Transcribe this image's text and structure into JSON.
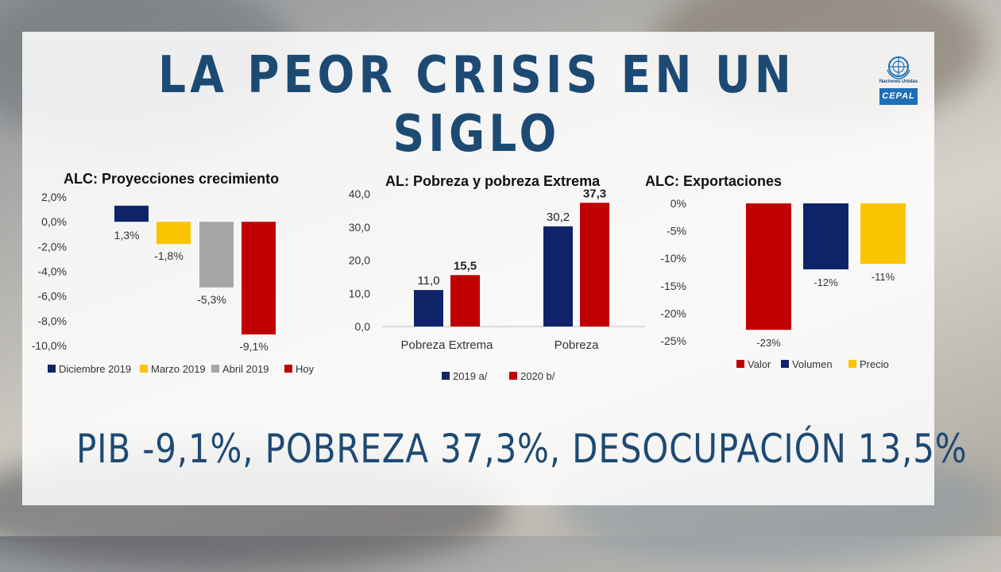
{
  "title": "LA PEOR CRISIS EN UN SIGLO",
  "logo": {
    "org": "Naciones Unidas",
    "name": "CEPAL"
  },
  "bottom_text": "PIB -9,1%, POBREZA 37,3%, DESOCUPACIÓN 13,5%",
  "colors": {
    "navy": "#0f2468",
    "yellow": "#fbc400",
    "gray": "#a6a6a6",
    "red": "#c00000",
    "title": "#1d4a73"
  },
  "chart_data": [
    {
      "type": "bar",
      "title": "ALC: Proyecciones crecimiento",
      "ylim": [
        -10,
        2
      ],
      "y_ticks": [
        "2,0%",
        "0,0%",
        "-2,0%",
        "-4,0%",
        "-6,0%",
        "-8,0%",
        "-10,0%"
      ],
      "series": [
        {
          "name": "Diciembre 2019",
          "value": 1.3,
          "label": "1,3%",
          "color": "#0f2468"
        },
        {
          "name": "Marzo 2019",
          "value": -1.8,
          "label": "-1,8%",
          "color": "#fbc400"
        },
        {
          "name": "Abril 2019",
          "value": -5.3,
          "label": "-5,3%",
          "color": "#a6a6a6"
        },
        {
          "name": "Hoy",
          "value": -9.1,
          "label": "-9,1%",
          "color": "#c00000"
        }
      ],
      "legend": "bottom"
    },
    {
      "type": "bar",
      "title": "AL: Pobreza y pobreza Extrema",
      "ylim": [
        0,
        40
      ],
      "y_ticks": [
        "40,0",
        "30,0",
        "20,0",
        "10,0",
        "0,0"
      ],
      "categories": [
        "Pobreza Extrema",
        "Pobreza"
      ],
      "series": [
        {
          "name": "2019 a/",
          "values": [
            11.0,
            30.2
          ],
          "labels": [
            "11,0",
            "30,2"
          ],
          "color": "#0f2468"
        },
        {
          "name": "2020 b/",
          "values": [
            15.5,
            37.3
          ],
          "labels": [
            "15,5",
            "37,3"
          ],
          "color": "#c00000"
        }
      ],
      "legend": "bottom"
    },
    {
      "type": "bar",
      "title": "ALC: Exportaciones",
      "ylim": [
        -25,
        0
      ],
      "y_ticks": [
        "0%",
        "-5%",
        "-10%",
        "-15%",
        "-20%",
        "-25%"
      ],
      "series": [
        {
          "name": "Valor",
          "value": -23,
          "label": "-23%",
          "color": "#c00000"
        },
        {
          "name": "Volumen",
          "value": -12,
          "label": "-12%",
          "color": "#0f2468"
        },
        {
          "name": "Precio",
          "value": -11,
          "label": "-11%",
          "color": "#fbc400"
        }
      ],
      "legend": "bottom"
    }
  ]
}
